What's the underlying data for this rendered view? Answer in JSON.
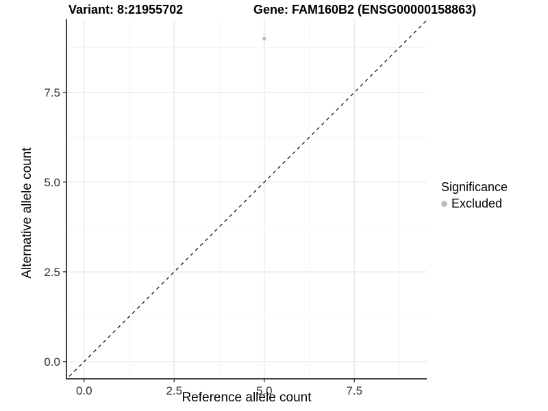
{
  "header": {
    "variant_title": "Variant: 8:21955702",
    "gene_title": "Gene: FAM160B2 (ENSG00000158863)"
  },
  "chart_data": {
    "type": "scatter",
    "title": "Variant: 8:21955702   Gene: FAM160B2 (ENSG00000158863)",
    "xlabel": "Reference allele count",
    "ylabel": "Alternative allele count",
    "xlim": [
      -0.49,
      9.51
    ],
    "ylim": [
      -0.48,
      9.54
    ],
    "x_major_ticks": [
      0,
      2.5,
      5,
      7.5
    ],
    "y_major_ticks": [
      0,
      2.5,
      5,
      7.5
    ],
    "x_minor_ticks": [
      1.25,
      3.75,
      6.25,
      8.75
    ],
    "y_minor_ticks": [
      1.25,
      3.75,
      6.25,
      8.75
    ],
    "x_tick_labels": [
      "0.0",
      "2.5",
      "5.0",
      "7.5"
    ],
    "y_tick_labels": [
      "0.0",
      "2.5",
      "5.0",
      "7.5"
    ],
    "grid": true,
    "legend_position": "right",
    "series": [
      {
        "name": "Excluded",
        "color": "#bdbdbd",
        "points": [
          {
            "x": 5,
            "y": 9
          }
        ],
        "point_radius": 2.8
      }
    ],
    "reference_line": {
      "slope": 1,
      "intercept": 0,
      "style": "dashed",
      "color": "#111111"
    },
    "legend": {
      "title": "Significance",
      "entries": [
        {
          "label": "Excluded",
          "color": "#bdbdbd"
        }
      ]
    },
    "colors": {
      "background": "#ffffff",
      "grid_major": "#e8e8e8",
      "grid_minor": "#f4f4f4",
      "axis_line": "#404040",
      "tick_mark": "#404040",
      "tick_label": "#303030"
    }
  }
}
